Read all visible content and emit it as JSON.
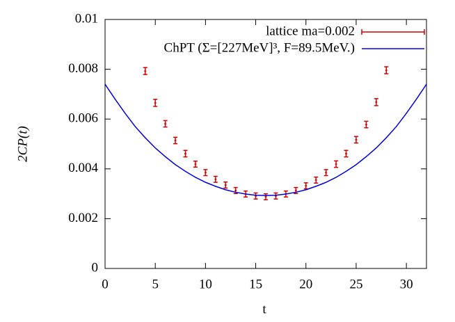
{
  "chart_data": {
    "type": "scatter",
    "xlabel": "t",
    "ylabel": "2CP(t)",
    "xlim": [
      0,
      32
    ],
    "ylim": [
      0,
      0.01
    ],
    "xticks": [
      0,
      5,
      10,
      15,
      20,
      25,
      30
    ],
    "yticks": [
      0,
      0.002,
      0.004,
      0.006,
      0.008,
      0.01
    ],
    "legend": "upper right",
    "series": [
      {
        "name": "lattice ma=0.002",
        "color": "#d00000",
        "style": "errorbar",
        "x": [
          4,
          5,
          6,
          7,
          8,
          9,
          10,
          11,
          12,
          13,
          14,
          15,
          16,
          17,
          18,
          19,
          20,
          21,
          22,
          23,
          24,
          25,
          26,
          27,
          28
        ],
        "values": [
          0.00793,
          0.00665,
          0.00581,
          0.00514,
          0.00461,
          0.00419,
          0.00385,
          0.00358,
          0.00335,
          0.00313,
          0.00299,
          0.00291,
          0.00288,
          0.00291,
          0.00299,
          0.00313,
          0.00332,
          0.00355,
          0.00385,
          0.00419,
          0.00461,
          0.00517,
          0.00578,
          0.00668,
          0.00796
        ],
        "errors": [
          0.00014,
          0.00014,
          0.00013,
          0.00013,
          0.00013,
          0.00012,
          0.00012,
          0.00012,
          0.00012,
          0.00012,
          0.00012,
          0.00012,
          0.00012,
          0.00012,
          0.00012,
          0.00012,
          0.00012,
          0.00012,
          0.00012,
          0.00013,
          0.00013,
          0.00013,
          0.00013,
          0.00014,
          0.00014
        ]
      },
      {
        "name": "ChPT (Σ=[227MeV]³, F=89.5MeV.)",
        "color": "#0000dd",
        "style": "line",
        "x": [
          0,
          1,
          2,
          3,
          4,
          5,
          6,
          7,
          8,
          9,
          10,
          11,
          12,
          13,
          14,
          15,
          16,
          17,
          18,
          19,
          20,
          21,
          22,
          23,
          24,
          25,
          26,
          27,
          28,
          29,
          30,
          31,
          32
        ],
        "values": [
          0.0074,
          0.0068,
          0.00623,
          0.0057,
          0.00525,
          0.00484,
          0.00449,
          0.00417,
          0.0039,
          0.00366,
          0.00346,
          0.0033,
          0.00316,
          0.00306,
          0.00299,
          0.00294,
          0.00293,
          0.00294,
          0.00299,
          0.00306,
          0.00316,
          0.0033,
          0.00346,
          0.00366,
          0.0039,
          0.00417,
          0.00449,
          0.00484,
          0.00525,
          0.0057,
          0.00623,
          0.0068,
          0.0074
        ]
      }
    ]
  }
}
